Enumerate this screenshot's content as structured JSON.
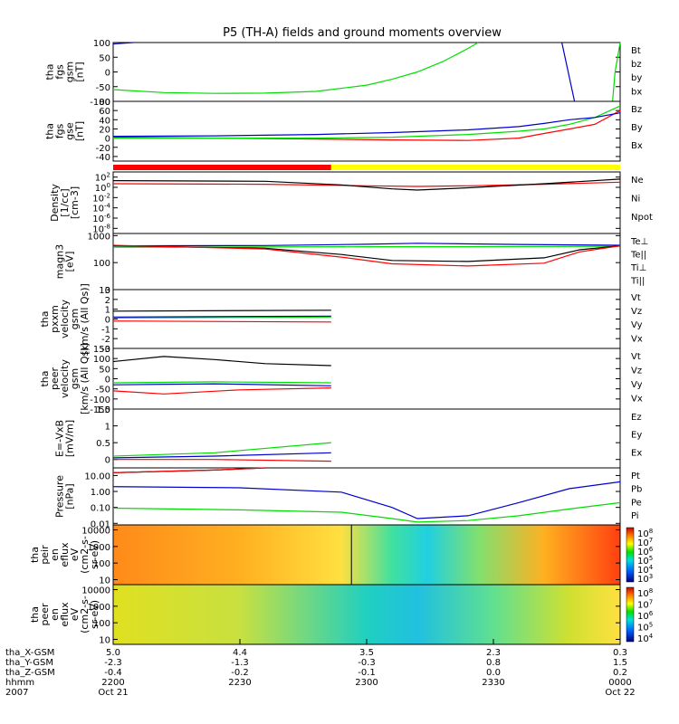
{
  "title": "P5 (TH-A) fields and ground moments overview",
  "colors": {
    "black": "#000000",
    "red": "#ff0000",
    "green": "#00dd00",
    "blue": "#0000cc",
    "yellow": "#ffff00"
  },
  "chart_data": [
    {
      "type": "line",
      "panel": "fgs_gsm",
      "ylabel": [
        "tha",
        "fgs",
        "gsm",
        "[nT]"
      ],
      "ylim": [
        -100,
        100
      ],
      "yticks": [
        100,
        50,
        0,
        -50,
        -100
      ],
      "legend": [
        {
          "label": "Bt",
          "color": "black"
        },
        {
          "label": "bz",
          "color": "red"
        },
        {
          "label": "by",
          "color": "green"
        },
        {
          "label": "bx",
          "color": "blue"
        }
      ],
      "series": [
        {
          "name": "by",
          "color": "green",
          "x": [
            0,
            0.1,
            0.2,
            0.3,
            0.4,
            0.5,
            0.55,
            0.6,
            0.65,
            0.7,
            0.72
          ],
          "y": [
            -60,
            -70,
            -73,
            -72,
            -66,
            -45,
            -25,
            0,
            35,
            80,
            100
          ]
        },
        {
          "name": "by",
          "color": "green",
          "x": [
            0.985,
            0.99,
            1.0
          ],
          "y": [
            -100,
            0,
            100
          ]
        },
        {
          "name": "bx",
          "color": "blue",
          "x": [
            0,
            0.04
          ],
          "y": [
            95,
            100
          ]
        },
        {
          "name": "bx",
          "color": "blue",
          "x": [
            0.885,
            0.91
          ],
          "y": [
            100,
            -100
          ]
        }
      ]
    },
    {
      "type": "line",
      "panel": "fgs_gse",
      "ylabel": [
        "tha",
        "fgs",
        "gse",
        "[nT]"
      ],
      "ylim": [
        -50,
        80
      ],
      "yticks": [
        80,
        60,
        40,
        20,
        0,
        -20,
        -40
      ],
      "legend": [
        {
          "label": "Bz",
          "color": "red"
        },
        {
          "label": "By",
          "color": "green"
        },
        {
          "label": "Bx",
          "color": "blue"
        }
      ],
      "series": [
        {
          "name": "Bz",
          "color": "red",
          "x": [
            0,
            0.2,
            0.4,
            0.55,
            0.7,
            0.8,
            0.85,
            0.9,
            0.95,
            1.0
          ],
          "y": [
            2,
            0,
            -2,
            -4,
            -5,
            0,
            10,
            20,
            30,
            60
          ]
        },
        {
          "name": "By",
          "color": "green",
          "x": [
            0,
            0.2,
            0.4,
            0.55,
            0.7,
            0.8,
            0.85,
            0.9,
            0.95,
            1.0
          ],
          "y": [
            0,
            0,
            0,
            2,
            8,
            15,
            20,
            30,
            45,
            70
          ]
        },
        {
          "name": "Bx",
          "color": "blue",
          "x": [
            0,
            0.2,
            0.4,
            0.55,
            0.7,
            0.8,
            0.85,
            0.9,
            0.95,
            1.0
          ],
          "y": [
            4,
            5,
            8,
            12,
            18,
            25,
            32,
            40,
            45,
            55
          ]
        }
      ]
    },
    {
      "type": "bar",
      "panel": "mode_bar",
      "segments": [
        {
          "from": 0,
          "to": 0.43,
          "color": "red"
        },
        {
          "from": 0.43,
          "to": 1.0,
          "color": "yellow"
        }
      ]
    },
    {
      "type": "line",
      "panel": "density",
      "ylabel": [
        "Density",
        "[1/cc]",
        "[cm-3]"
      ],
      "yscale": "log",
      "ylim": [
        1e-09,
        1000.0
      ],
      "yticks": [
        "10^2",
        "10^0",
        "10^-2",
        "10^-4",
        "10^-6",
        "10^-8"
      ],
      "legend": [
        {
          "label": "Ne",
          "color": "red"
        },
        {
          "label": "Ni",
          "color": "black"
        },
        {
          "label": "Npot",
          "color": "blue"
        }
      ],
      "series": [
        {
          "name": "Ne",
          "color": "red",
          "x": [
            0,
            0.3,
            0.5,
            0.6,
            0.7,
            0.85,
            1.0
          ],
          "y": [
            5,
            4,
            2,
            1.5,
            2,
            4,
            10
          ]
        },
        {
          "name": "Ni",
          "color": "black",
          "x": [
            0,
            0.3,
            0.45,
            0.55,
            0.6,
            0.7,
            0.85,
            1.0
          ],
          "y": [
            20,
            15,
            3,
            0.5,
            0.3,
            0.8,
            5,
            40
          ]
        }
      ]
    },
    {
      "type": "line",
      "panel": "temperature",
      "ylabel": [
        "magn3",
        "[eV]"
      ],
      "yscale": "log",
      "ylim": [
        10,
        1200
      ],
      "yticks": [
        1000,
        100,
        10
      ],
      "legend": [
        {
          "label": "Te⊥",
          "color": "red"
        },
        {
          "label": "Te||",
          "color": "black"
        },
        {
          "label": "Ti⊥",
          "color": "blue"
        },
        {
          "label": "Ti||",
          "color": "green"
        }
      ],
      "series": [
        {
          "name": "Ti⊥",
          "color": "blue",
          "x": [
            0,
            0.3,
            0.5,
            0.6,
            0.8,
            1.0
          ],
          "y": [
            420,
            430,
            480,
            520,
            470,
            440
          ]
        },
        {
          "name": "Ti||",
          "color": "green",
          "x": [
            0,
            0.3,
            0.5,
            0.7,
            1.0
          ],
          "y": [
            370,
            380,
            390,
            390,
            400
          ]
        },
        {
          "name": "Te||",
          "color": "black",
          "x": [
            0,
            0.3,
            0.45,
            0.55,
            0.7,
            0.85,
            0.92,
            1.0
          ],
          "y": [
            420,
            340,
            200,
            120,
            110,
            150,
            300,
            420
          ]
        },
        {
          "name": "Te⊥",
          "color": "red",
          "x": [
            0,
            0.3,
            0.45,
            0.55,
            0.7,
            0.85,
            0.92,
            1.0
          ],
          "y": [
            440,
            320,
            160,
            90,
            75,
            95,
            250,
            420
          ]
        }
      ]
    },
    {
      "type": "line",
      "panel": "pxxm_velocity",
      "ylabel": [
        "tha",
        "pxxm",
        "velocity",
        "gsm",
        "[km/s (All Qs)]"
      ],
      "ylim": [
        -3,
        3
      ],
      "yticks": [
        3,
        2,
        1,
        0,
        -1,
        -2,
        -3
      ],
      "legend": [
        {
          "label": "Vt",
          "color": "black"
        },
        {
          "label": "Vz",
          "color": "red"
        },
        {
          "label": "Vy",
          "color": "green"
        },
        {
          "label": "Vx",
          "color": "blue"
        }
      ],
      "series": [
        {
          "name": "Vt",
          "color": "black",
          "x": [
            0,
            0.43
          ],
          "y": [
            0.8,
            0.9
          ]
        },
        {
          "name": "Vz",
          "color": "red",
          "x": [
            0,
            0.43
          ],
          "y": [
            -0.2,
            -0.3
          ]
        },
        {
          "name": "Vy",
          "color": "green",
          "x": [
            0,
            0.43
          ],
          "y": [
            0.1,
            0.2
          ]
        },
        {
          "name": "Vx",
          "color": "blue",
          "x": [
            0,
            0.43
          ],
          "y": [
            0.2,
            0.3
          ]
        }
      ]
    },
    {
      "type": "line",
      "panel": "peer_velocity",
      "ylabel": [
        "tha",
        "peer",
        "velocity",
        "gsm",
        "[km/s (All Qs)]"
      ],
      "ylim": [
        -150,
        150
      ],
      "yticks": [
        150,
        100,
        50,
        0,
        -50,
        -100,
        -150
      ],
      "legend": [
        {
          "label": "Vt",
          "color": "black"
        },
        {
          "label": "Vz",
          "color": "red"
        },
        {
          "label": "Vy",
          "color": "green"
        },
        {
          "label": "Vx",
          "color": "blue"
        }
      ],
      "series": [
        {
          "name": "Vt",
          "color": "black",
          "x": [
            0,
            0.1,
            0.2,
            0.3,
            0.43
          ],
          "y": [
            85,
            110,
            95,
            75,
            65
          ]
        },
        {
          "name": "Vy",
          "color": "green",
          "x": [
            0,
            0.2,
            0.43
          ],
          "y": [
            -20,
            -15,
            -20
          ]
        },
        {
          "name": "Vx",
          "color": "blue",
          "x": [
            0,
            0.2,
            0.43
          ],
          "y": [
            -30,
            -25,
            -35
          ]
        },
        {
          "name": "Vz",
          "color": "red",
          "x": [
            0,
            0.1,
            0.25,
            0.43
          ],
          "y": [
            -60,
            -75,
            -55,
            -45
          ]
        }
      ]
    },
    {
      "type": "line",
      "panel": "efield",
      "ylabel": [
        "E=-VxB",
        "[mV/m]"
      ],
      "ylim": [
        -0.25,
        1.5
      ],
      "yticks": [
        1.5,
        1.0,
        0.5,
        0.0
      ],
      "legend": [
        {
          "label": "Ez",
          "color": "red"
        },
        {
          "label": "Ey",
          "color": "green"
        },
        {
          "label": "Ex",
          "color": "blue"
        }
      ],
      "series": [
        {
          "name": "Ey",
          "color": "green",
          "x": [
            0,
            0.2,
            0.43
          ],
          "y": [
            0.1,
            0.2,
            0.5
          ]
        },
        {
          "name": "Ex",
          "color": "blue",
          "x": [
            0,
            0.2,
            0.43
          ],
          "y": [
            0.05,
            0.1,
            0.2
          ]
        },
        {
          "name": "Ez",
          "color": "red",
          "x": [
            0,
            0.2,
            0.43
          ],
          "y": [
            0.0,
            0.0,
            -0.05
          ]
        }
      ]
    },
    {
      "type": "line",
      "panel": "pressure",
      "ylabel": [
        "Pressure",
        "[nPa]"
      ],
      "yscale": "log",
      "ylim": [
        0.008,
        30
      ],
      "yticks": [
        "10.00",
        "1.00",
        "0.10",
        "0.01"
      ],
      "legend": [
        {
          "label": "Pt",
          "color": "black"
        },
        {
          "label": "Pb",
          "color": "red"
        },
        {
          "label": "Pe",
          "color": "green"
        },
        {
          "label": "Pi",
          "color": "blue"
        }
      ],
      "series": [
        {
          "name": "Pt",
          "color": "black",
          "x": [
            0,
            0.2,
            0.3
          ],
          "y": [
            15,
            22,
            30
          ]
        },
        {
          "name": "Pb",
          "color": "red",
          "x": [
            0,
            0.2,
            0.3
          ],
          "y": [
            15,
            22,
            30
          ]
        },
        {
          "name": "Pi",
          "color": "blue",
          "x": [
            0,
            0.25,
            0.45,
            0.55,
            0.6,
            0.7,
            0.8,
            0.9,
            1.0
          ],
          "y": [
            2,
            1.7,
            0.9,
            0.1,
            0.02,
            0.03,
            0.2,
            1.5,
            4
          ]
        },
        {
          "name": "Pe",
          "color": "green",
          "x": [
            0,
            0.25,
            0.45,
            0.55,
            0.6,
            0.7,
            0.8,
            0.9,
            1.0
          ],
          "y": [
            0.09,
            0.07,
            0.05,
            0.02,
            0.012,
            0.015,
            0.03,
            0.08,
            0.2
          ]
        }
      ]
    },
    {
      "type": "heatmap",
      "panel": "peir_spectrogram",
      "ylabel": [
        "tha",
        "peir",
        "en",
        "eflux",
        "eV",
        "(cm2-s-",
        "sr-eV)"
      ],
      "yscale": "log",
      "ylim": [
        5,
        20000
      ],
      "yticks": [
        10000,
        1000,
        100,
        10
      ],
      "colorbar_ticks": [
        "10^8",
        "10^7",
        "10^6",
        "10^5",
        "10^4",
        "10^3"
      ]
    },
    {
      "type": "heatmap",
      "panel": "peer_spectrogram",
      "ylabel": [
        "tha",
        "peer",
        "en",
        "eflux",
        "eV",
        "(cm2-s-",
        "sr-eV)"
      ],
      "yscale": "log",
      "ylim": [
        5,
        20000
      ],
      "yticks": [
        10000,
        1000,
        100,
        10
      ],
      "colorbar_ticks": [
        "10^8",
        "10^7",
        "10^6",
        "10^5",
        "10^4"
      ]
    }
  ],
  "xaxis": {
    "rows": [
      {
        "label": "tha_X-GSM",
        "values": [
          "5.0",
          "4.4",
          "3.5",
          "2.3",
          "0.3"
        ]
      },
      {
        "label": "tha_Y-GSM",
        "values": [
          "-2.3",
          "-1.3",
          "-0.3",
          "0.8",
          "1.5"
        ]
      },
      {
        "label": "tha_Z-GSM",
        "values": [
          "-0.4",
          "-0.2",
          "-0.1",
          "0.0",
          "0.2"
        ]
      },
      {
        "label": "hhmm",
        "values": [
          "2200",
          "2230",
          "2300",
          "2330",
          "0000"
        ]
      },
      {
        "label": "2007",
        "values": [
          "Oct 21",
          "",
          "",
          "",
          "Oct 22"
        ]
      }
    ]
  }
}
